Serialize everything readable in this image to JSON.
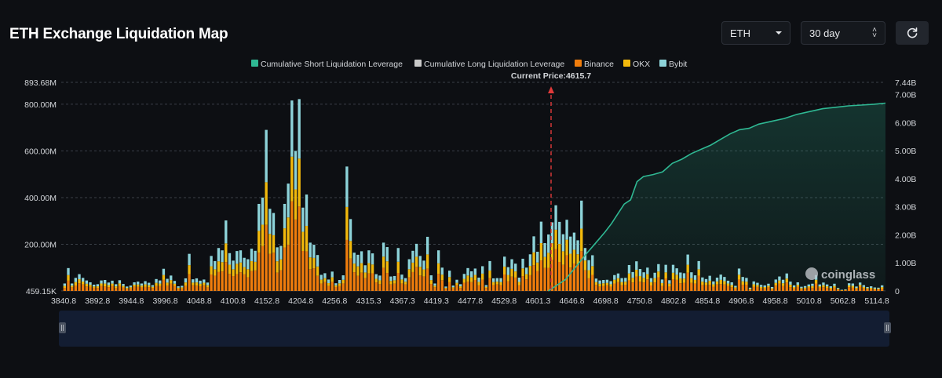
{
  "header": {
    "title": "ETH Exchange Liquidation Map",
    "asset_select": "ETH",
    "range_select": "30 day"
  },
  "icons": {
    "refresh": "refresh-icon",
    "dropdown": "chevron-down-icon",
    "stepper": "updown-icon"
  },
  "watermark": "coinglass",
  "colors": {
    "background": "#0d0f13",
    "short_cumulative": "#2fb893",
    "long_cumulative": "#c9c9c9",
    "binance": "#f07d0c",
    "okx": "#f2b90c",
    "bybit": "#8dd3d9",
    "current_price_line": "#e03a3a"
  },
  "chart_data": {
    "type": "bar",
    "title": "ETH Exchange Liquidation Map",
    "current_price_label": "Current Price:4615.7",
    "current_price": 4615.7,
    "legend": [
      {
        "name": "Cumulative Short Liquidation Leverage",
        "color": "#2fb893"
      },
      {
        "name": "Cumulative Long Liquidation Leverage",
        "color": "#c9c9c9"
      },
      {
        "name": "Binance",
        "color": "#f07d0c"
      },
      {
        "name": "OKX",
        "color": "#f2b90c"
      },
      {
        "name": "Bybit",
        "color": "#8dd3d9"
      }
    ],
    "x_tick_labels": [
      "3840.8",
      "3892.8",
      "3944.8",
      "3996.8",
      "4048.8",
      "4100.8",
      "4152.8",
      "4204.8",
      "4256.8",
      "4315.3",
      "4367.3",
      "4419.3",
      "4477.8",
      "4529.8",
      "4601.3",
      "4646.8",
      "4698.8",
      "4750.8",
      "4802.8",
      "4854.8",
      "4906.8",
      "4958.8",
      "5010.8",
      "5062.8",
      "5114.8"
    ],
    "x_range": [
      3840.8,
      5128
    ],
    "y_left_ticks": [
      "459.15K",
      "200.00M",
      "400.00M",
      "600.00M",
      "800.00M",
      "893.68M"
    ],
    "y_left_tick_values": [
      0.459,
      200,
      400,
      600,
      800,
      893.68
    ],
    "y_left_range": [
      0,
      893.68
    ],
    "y_left_unit": "M",
    "y_right_ticks": [
      "0",
      "1.00B",
      "2.00B",
      "3.00B",
      "4.00B",
      "5.00B",
      "6.00B",
      "7.00B",
      "7.44B"
    ],
    "y_right_tick_values": [
      0,
      1,
      2,
      3,
      4,
      5,
      6,
      7,
      7.44
    ],
    "y_right_range": [
      0,
      7.44
    ],
    "y_right_unit": "B",
    "bar_totals": [
      32,
      98,
      32,
      56,
      72,
      56,
      45,
      37,
      27,
      29,
      45,
      47,
      36,
      44,
      29,
      46,
      30,
      19,
      23,
      37,
      40,
      32,
      42,
      35,
      25,
      51,
      45,
      95,
      52,
      66,
      43,
      20,
      22,
      54,
      159,
      50,
      54,
      44,
      49,
      36,
      150,
      128,
      184,
      174,
      302,
      162,
      130,
      171,
      174,
      142,
      136,
      181,
      172,
      373,
      400,
      690,
      352,
      334,
      187,
      193,
      373,
      460,
      816,
      600,
      822,
      357,
      413,
      207,
      198,
      154,
      69,
      76,
      49,
      83,
      33,
      47,
      67,
      533,
      308,
      164,
      155,
      170,
      110,
      174,
      161,
      72,
      66,
      207,
      188,
      62,
      64,
      184,
      70,
      55,
      136,
      172,
      202,
      150,
      130,
      232,
      67,
      32,
      174,
      100,
      19,
      87,
      23,
      48,
      29,
      73,
      98,
      84,
      96,
      57,
      106,
      25,
      128,
      54,
      55,
      55,
      147,
      102,
      136,
      117,
      57,
      138,
      100,
      157,
      234,
      168,
      297,
      205,
      242,
      294,
      367,
      296,
      243,
      305,
      233,
      250,
      217,
      387,
      184,
      132,
      153,
      53,
      45,
      47,
      48,
      42,
      68,
      75,
      55,
      56,
      111,
      81,
      127,
      94,
      80,
      100,
      55,
      78,
      115,
      49,
      112,
      46,
      112,
      97,
      79,
      76,
      156,
      80,
      67,
      128,
      58,
      51,
      65,
      41,
      57,
      70,
      60,
      44,
      37,
      22,
      96,
      60,
      56,
      14,
      41,
      35,
      26,
      24,
      31,
      17,
      49,
      62,
      48,
      75,
      40,
      24,
      37,
      18,
      21,
      28,
      31,
      68,
      28,
      36,
      28,
      20,
      31,
      13,
      5,
      7,
      33,
      32,
      19,
      36,
      25,
      17,
      20,
      15,
      14,
      24
    ],
    "cumulative_short_curve_billions": [
      [
        4601.3,
        0
      ],
      [
        4628,
        0.4
      ],
      [
        4646,
        0.9
      ],
      [
        4660,
        1.3
      ],
      [
        4675,
        1.7
      ],
      [
        4690,
        2.1
      ],
      [
        4700,
        2.4
      ],
      [
        4710,
        2.75
      ],
      [
        4720,
        3.1
      ],
      [
        4730,
        3.25
      ],
      [
        4740,
        3.9
      ],
      [
        4750,
        4.08
      ],
      [
        4765,
        4.15
      ],
      [
        4780,
        4.25
      ],
      [
        4795,
        4.55
      ],
      [
        4810,
        4.7
      ],
      [
        4825,
        4.9
      ],
      [
        4840,
        5.05
      ],
      [
        4855,
        5.2
      ],
      [
        4870,
        5.4
      ],
      [
        4885,
        5.6
      ],
      [
        4900,
        5.75
      ],
      [
        4915,
        5.8
      ],
      [
        4930,
        5.95
      ],
      [
        4950,
        6.05
      ],
      [
        4970,
        6.15
      ],
      [
        4990,
        6.3
      ],
      [
        5010,
        6.4
      ],
      [
        5030,
        6.5
      ],
      [
        5050,
        6.55
      ],
      [
        5070,
        6.6
      ],
      [
        5090,
        6.63
      ],
      [
        5110,
        6.66
      ],
      [
        5128,
        6.7
      ]
    ]
  }
}
